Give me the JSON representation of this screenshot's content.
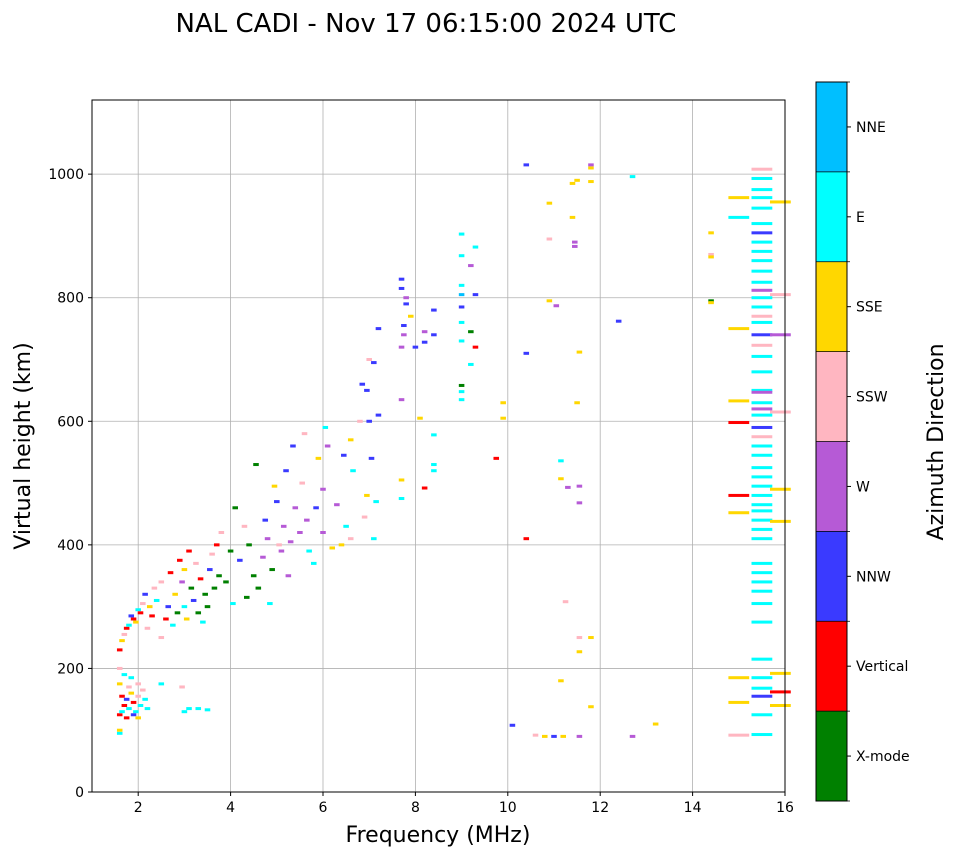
{
  "chart_data": {
    "type": "scatter",
    "title": "NAL CADI - Nov 17 06:15:00 2024 UTC",
    "xlabel": "Frequency (MHz)",
    "ylabel": "Virtual height (km)",
    "xlim": [
      1,
      16
    ],
    "ylim": [
      0,
      1120
    ],
    "xticks": [
      2,
      4,
      6,
      8,
      10,
      12,
      14,
      16
    ],
    "yticks": [
      0,
      200,
      400,
      600,
      800,
      1000
    ],
    "grid": true,
    "colorbar": {
      "label": "Azimuth Direction",
      "categories": [
        "X-mode",
        "Vertical",
        "NNW",
        "W",
        "SSW",
        "SSE",
        "E",
        "NNE"
      ],
      "colors": [
        "#008000",
        "#ff0000",
        "#3a3aff",
        "#b65ad6",
        "#ffb6c1",
        "#ffd700",
        "#00ffff",
        "#00bfff"
      ]
    },
    "point_format": [
      "frequency_mhz",
      "height_km",
      "category_index"
    ],
    "points": [
      [
        1.6,
        95,
        6
      ],
      [
        1.6,
        100,
        5
      ],
      [
        1.6,
        125,
        1
      ],
      [
        1.65,
        130,
        6
      ],
      [
        1.7,
        140,
        1
      ],
      [
        1.75,
        150,
        2
      ],
      [
        1.8,
        135,
        6
      ],
      [
        1.85,
        160,
        5
      ],
      [
        1.9,
        145,
        1
      ],
      [
        1.95,
        130,
        6
      ],
      [
        2.0,
        155,
        4
      ],
      [
        2.05,
        140,
        6
      ],
      [
        2.1,
        165,
        4
      ],
      [
        2.15,
        150,
        6
      ],
      [
        2.2,
        135,
        6
      ],
      [
        1.6,
        175,
        5
      ],
      [
        1.7,
        190,
        6
      ],
      [
        1.8,
        170,
        4
      ],
      [
        1.65,
        155,
        1
      ],
      [
        1.9,
        125,
        2
      ],
      [
        2.0,
        120,
        5
      ],
      [
        1.75,
        120,
        1
      ],
      [
        1.85,
        185,
        6
      ],
      [
        2.5,
        175,
        6
      ],
      [
        2.95,
        170,
        4
      ],
      [
        3.0,
        130,
        6
      ],
      [
        3.1,
        135,
        6
      ],
      [
        3.3,
        135,
        6
      ],
      [
        3.5,
        133,
        6
      ],
      [
        1.6,
        200,
        4
      ],
      [
        2.0,
        175,
        4
      ],
      [
        1.6,
        230,
        1
      ],
      [
        1.65,
        245,
        5
      ],
      [
        1.7,
        255,
        4
      ],
      [
        1.75,
        265,
        1
      ],
      [
        1.8,
        270,
        6
      ],
      [
        1.85,
        285,
        2
      ],
      [
        1.9,
        280,
        1
      ],
      [
        1.95,
        275,
        5
      ],
      [
        2.0,
        295,
        6
      ],
      [
        2.05,
        290,
        1
      ],
      [
        2.1,
        305,
        4
      ],
      [
        2.15,
        320,
        2
      ],
      [
        2.2,
        265,
        4
      ],
      [
        2.25,
        300,
        5
      ],
      [
        2.3,
        285,
        1
      ],
      [
        2.35,
        330,
        4
      ],
      [
        2.4,
        310,
        6
      ],
      [
        2.5,
        250,
        4
      ],
      [
        2.5,
        340,
        4
      ],
      [
        2.6,
        280,
        1
      ],
      [
        2.65,
        300,
        2
      ],
      [
        2.7,
        355,
        1
      ],
      [
        2.75,
        270,
        6
      ],
      [
        2.8,
        320,
        5
      ],
      [
        2.85,
        290,
        0
      ],
      [
        2.9,
        375,
        1
      ],
      [
        2.95,
        340,
        3
      ],
      [
        3.0,
        300,
        6
      ],
      [
        3.0,
        360,
        5
      ],
      [
        3.05,
        280,
        5
      ],
      [
        3.1,
        390,
        1
      ],
      [
        3.15,
        330,
        0
      ],
      [
        3.2,
        310,
        2
      ],
      [
        3.25,
        370,
        4
      ],
      [
        3.3,
        290,
        0
      ],
      [
        3.35,
        345,
        1
      ],
      [
        3.4,
        275,
        6
      ],
      [
        3.45,
        320,
        0
      ],
      [
        3.5,
        300,
        0
      ],
      [
        3.55,
        360,
        2
      ],
      [
        3.6,
        385,
        4
      ],
      [
        3.65,
        330,
        0
      ],
      [
        3.7,
        400,
        1
      ],
      [
        3.75,
        350,
        0
      ],
      [
        3.8,
        420,
        4
      ],
      [
        3.9,
        340,
        0
      ],
      [
        4.0,
        390,
        0
      ],
      [
        4.05,
        305,
        6
      ],
      [
        4.1,
        460,
        0
      ],
      [
        4.2,
        375,
        2
      ],
      [
        4.3,
        430,
        4
      ],
      [
        4.35,
        315,
        0
      ],
      [
        4.4,
        400,
        0
      ],
      [
        4.5,
        350,
        0
      ],
      [
        4.55,
        530,
        0
      ],
      [
        4.6,
        330,
        0
      ],
      [
        4.7,
        380,
        3
      ],
      [
        4.75,
        440,
        2
      ],
      [
        4.8,
        410,
        3
      ],
      [
        4.85,
        305,
        6
      ],
      [
        4.9,
        360,
        0
      ],
      [
        4.95,
        495,
        5
      ],
      [
        5.0,
        470,
        2
      ],
      [
        5.05,
        400,
        4
      ],
      [
        5.1,
        390,
        3
      ],
      [
        5.15,
        430,
        3
      ],
      [
        5.2,
        520,
        2
      ],
      [
        5.25,
        350,
        3
      ],
      [
        5.3,
        405,
        3
      ],
      [
        5.35,
        560,
        2
      ],
      [
        5.4,
        460,
        3
      ],
      [
        5.5,
        420,
        3
      ],
      [
        5.55,
        500,
        4
      ],
      [
        5.6,
        580,
        4
      ],
      [
        5.65,
        440,
        3
      ],
      [
        5.7,
        390,
        6
      ],
      [
        5.8,
        370,
        6
      ],
      [
        5.85,
        460,
        2
      ],
      [
        5.9,
        540,
        5
      ],
      [
        6.0,
        420,
        3
      ],
      [
        6.0,
        490,
        3
      ],
      [
        6.05,
        590,
        6
      ],
      [
        6.1,
        560,
        3
      ],
      [
        6.2,
        395,
        5
      ],
      [
        6.3,
        465,
        3
      ],
      [
        6.4,
        400,
        5
      ],
      [
        6.45,
        545,
        2
      ],
      [
        6.5,
        430,
        6
      ],
      [
        6.6,
        410,
        4
      ],
      [
        6.6,
        570,
        5
      ],
      [
        6.65,
        520,
        6
      ],
      [
        6.8,
        600,
        4
      ],
      [
        6.9,
        445,
        4
      ],
      [
        6.95,
        480,
        5
      ],
      [
        7.0,
        600,
        2
      ],
      [
        7.05,
        540,
        2
      ],
      [
        7.1,
        410,
        6
      ],
      [
        7.15,
        470,
        6
      ],
      [
        7.2,
        610,
        2
      ],
      [
        7.2,
        750,
        2
      ],
      [
        7.0,
        700,
        4
      ],
      [
        7.1,
        695,
        2
      ],
      [
        6.85,
        660,
        2
      ],
      [
        6.95,
        650,
        2
      ],
      [
        7.7,
        830,
        2
      ],
      [
        7.7,
        815,
        2
      ],
      [
        7.8,
        800,
        3
      ],
      [
        7.8,
        790,
        2
      ],
      [
        7.75,
        755,
        2
      ],
      [
        7.7,
        720,
        3
      ],
      [
        7.75,
        740,
        3
      ],
      [
        7.7,
        635,
        3
      ],
      [
        7.7,
        505,
        5
      ],
      [
        7.7,
        475,
        6
      ],
      [
        7.9,
        770,
        5
      ],
      [
        8.0,
        720,
        2
      ],
      [
        8.1,
        605,
        5
      ],
      [
        8.2,
        745,
        3
      ],
      [
        8.2,
        728,
        2
      ],
      [
        8.2,
        492,
        1
      ],
      [
        8.4,
        780,
        2
      ],
      [
        8.4,
        740,
        2
      ],
      [
        8.4,
        578,
        6
      ],
      [
        8.4,
        530,
        6
      ],
      [
        8.4,
        520,
        6
      ],
      [
        9.0,
        903,
        6
      ],
      [
        9.0,
        868,
        6
      ],
      [
        9.0,
        820,
        6
      ],
      [
        9.0,
        805,
        7
      ],
      [
        9.0,
        785,
        2
      ],
      [
        9.0,
        760,
        6
      ],
      [
        9.0,
        730,
        6
      ],
      [
        9.0,
        658,
        0
      ],
      [
        9.0,
        648,
        6
      ],
      [
        9.0,
        635,
        6
      ],
      [
        9.2,
        852,
        3
      ],
      [
        9.2,
        745,
        0
      ],
      [
        9.2,
        692,
        6
      ],
      [
        9.3,
        882,
        6
      ],
      [
        9.3,
        805,
        2
      ],
      [
        9.3,
        720,
        1
      ],
      [
        9.75,
        540,
        1
      ],
      [
        9.9,
        630,
        5
      ],
      [
        9.9,
        605,
        5
      ],
      [
        10.1,
        108,
        2
      ],
      [
        10.4,
        1015,
        2
      ],
      [
        10.4,
        710,
        2
      ],
      [
        10.4,
        410,
        1
      ],
      [
        10.6,
        92,
        4
      ],
      [
        10.8,
        90,
        5
      ],
      [
        10.9,
        953,
        5
      ],
      [
        10.9,
        895,
        4
      ],
      [
        10.9,
        795,
        5
      ],
      [
        11.0,
        90,
        2
      ],
      [
        11.05,
        787,
        3
      ],
      [
        11.15,
        536,
        6
      ],
      [
        11.15,
        507,
        5
      ],
      [
        11.15,
        180,
        5
      ],
      [
        11.2,
        90,
        5
      ],
      [
        11.3,
        493,
        3
      ],
      [
        11.25,
        308,
        4
      ],
      [
        11.4,
        985,
        5
      ],
      [
        11.4,
        930,
        5
      ],
      [
        11.5,
        990,
        5
      ],
      [
        11.45,
        890,
        3
      ],
      [
        11.45,
        883,
        3
      ],
      [
        11.5,
        630,
        5
      ],
      [
        11.55,
        712,
        5
      ],
      [
        11.55,
        495,
        3
      ],
      [
        11.55,
        468,
        3
      ],
      [
        11.55,
        250,
        4
      ],
      [
        11.55,
        227,
        5
      ],
      [
        11.55,
        90,
        3
      ],
      [
        11.8,
        1015,
        3
      ],
      [
        11.8,
        1010,
        5
      ],
      [
        11.8,
        988,
        5
      ],
      [
        11.8,
        250,
        5
      ],
      [
        11.8,
        138,
        5
      ],
      [
        12.4,
        762,
        2
      ],
      [
        12.7,
        996,
        6
      ],
      [
        12.7,
        90,
        3
      ],
      [
        13.2,
        110,
        5
      ],
      [
        14.4,
        905,
        5
      ],
      [
        14.4,
        870,
        4
      ],
      [
        14.4,
        866,
        5
      ],
      [
        14.4,
        795,
        0
      ],
      [
        14.4,
        792,
        5
      ],
      [
        15.0,
        962,
        5
      ],
      [
        15.0,
        930,
        6
      ],
      [
        15.0,
        750,
        5
      ],
      [
        15.0,
        633,
        5
      ],
      [
        15.0,
        598,
        1
      ],
      [
        15.0,
        480,
        1
      ],
      [
        15.0,
        452,
        5
      ],
      [
        15.0,
        185,
        5
      ],
      [
        15.0,
        145,
        5
      ],
      [
        15.0,
        92,
        4
      ],
      [
        15.5,
        993,
        6
      ],
      [
        15.5,
        975,
        6
      ],
      [
        15.5,
        962,
        6
      ],
      [
        15.5,
        945,
        6
      ],
      [
        15.5,
        920,
        6
      ],
      [
        15.5,
        890,
        6
      ],
      [
        15.5,
        875,
        6
      ],
      [
        15.5,
        860,
        6
      ],
      [
        15.5,
        843,
        6
      ],
      [
        15.5,
        825,
        6
      ],
      [
        15.5,
        800,
        6
      ],
      [
        15.5,
        785,
        6
      ],
      [
        15.5,
        760,
        6
      ],
      [
        15.5,
        705,
        6
      ],
      [
        15.5,
        680,
        6
      ],
      [
        15.5,
        650,
        6
      ],
      [
        15.5,
        630,
        6
      ],
      [
        15.5,
        610,
        6
      ],
      [
        15.5,
        560,
        6
      ],
      [
        15.5,
        545,
        6
      ],
      [
        15.5,
        525,
        6
      ],
      [
        15.5,
        510,
        6
      ],
      [
        15.5,
        495,
        6
      ],
      [
        15.5,
        480,
        6
      ],
      [
        15.5,
        465,
        6
      ],
      [
        15.5,
        455,
        6
      ],
      [
        15.5,
        440,
        6
      ],
      [
        15.5,
        425,
        6
      ],
      [
        15.5,
        410,
        6
      ],
      [
        15.5,
        370,
        6
      ],
      [
        15.5,
        355,
        6
      ],
      [
        15.5,
        340,
        6
      ],
      [
        15.5,
        325,
        6
      ],
      [
        15.5,
        305,
        6
      ],
      [
        15.5,
        275,
        6
      ],
      [
        15.5,
        215,
        6
      ],
      [
        15.5,
        185,
        6
      ],
      [
        15.5,
        168,
        6
      ],
      [
        15.5,
        125,
        6
      ],
      [
        15.5,
        93,
        6
      ],
      [
        15.5,
        905,
        2
      ],
      [
        15.5,
        740,
        2
      ],
      [
        15.5,
        590,
        2
      ],
      [
        15.5,
        155,
        2
      ],
      [
        15.5,
        812,
        3
      ],
      [
        15.5,
        647,
        3
      ],
      [
        15.5,
        620,
        3
      ],
      [
        15.5,
        1008,
        4
      ],
      [
        15.5,
        770,
        4
      ],
      [
        15.5,
        723,
        4
      ],
      [
        15.5,
        575,
        4
      ],
      [
        15.9,
        955,
        5
      ],
      [
        15.9,
        805,
        4
      ],
      [
        15.9,
        740,
        3
      ],
      [
        15.9,
        615,
        4
      ],
      [
        15.9,
        490,
        5
      ],
      [
        15.9,
        438,
        5
      ],
      [
        15.9,
        192,
        5
      ],
      [
        15.9,
        162,
        1
      ],
      [
        15.9,
        140,
        5
      ]
    ]
  }
}
